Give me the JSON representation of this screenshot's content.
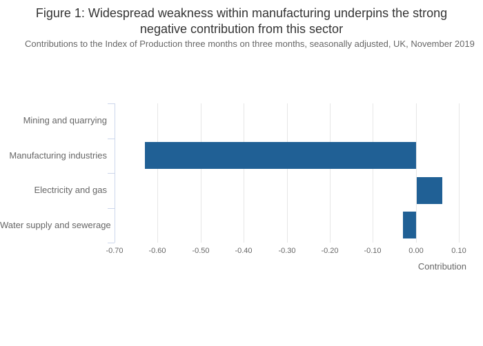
{
  "chart_data": {
    "type": "bar",
    "orientation": "horizontal",
    "title": "Figure 1: Widespread weakness within manufacturing underpins the strong negative contribution from this sector",
    "subtitle": "Contributions to the Index of Production three months on three months, seasonally adjusted, UK, November 2019",
    "categories": [
      "Mining and quarrying",
      "Manufacturing industries",
      "Electricity and gas",
      "Water supply and sewerage"
    ],
    "values": [
      0.0,
      -0.63,
      0.06,
      -0.03
    ],
    "xlabel": "Contribution",
    "ylabel": "",
    "xlim": [
      -0.7,
      0.1
    ],
    "xticks": [
      -0.7,
      -0.6,
      -0.5,
      -0.4,
      -0.3,
      -0.2,
      -0.1,
      0.0,
      0.1
    ],
    "grid": "vertical-only",
    "legend": "none",
    "colors": {
      "bar": "#206095",
      "gridline": "#e6e6e6",
      "axis_line": "#ccd6eb",
      "title_text": "#333333",
      "label_text": "#666666",
      "background": "#ffffff"
    }
  }
}
